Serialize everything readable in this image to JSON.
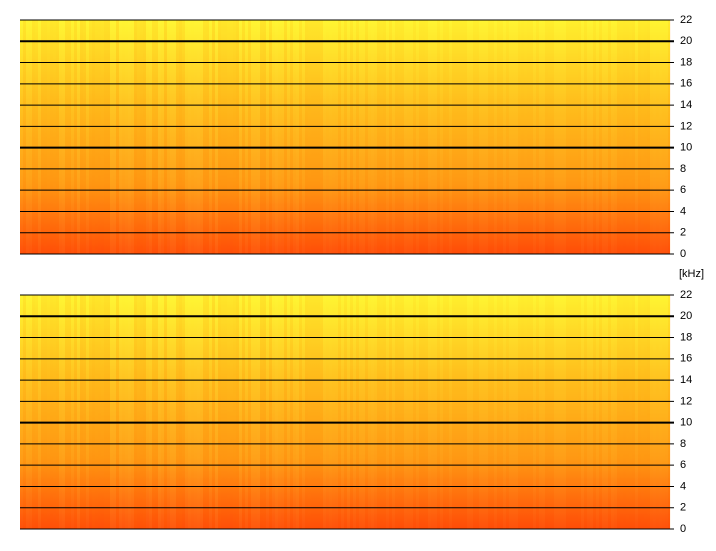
{
  "chart_data": [
    {
      "type": "spectrogram",
      "ylabel": "[kHz]",
      "ylim": [
        0,
        22
      ],
      "yticks": [
        0,
        2,
        4,
        6,
        8,
        10,
        12,
        14,
        16,
        18,
        20,
        22
      ],
      "grid": true
    },
    {
      "type": "spectrogram",
      "ylim": [
        0,
        22
      ],
      "yticks": [
        0,
        2,
        4,
        6,
        8,
        10,
        12,
        14,
        16,
        18,
        20,
        22
      ],
      "grid": true
    }
  ]
}
